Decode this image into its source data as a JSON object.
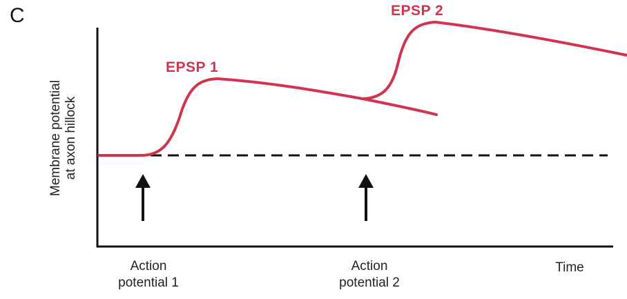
{
  "panel": {
    "letter": "C",
    "y_axis_label_line1": "Membrane potential",
    "y_axis_label_line2": "at axon hillock",
    "x_axis_label": "Time"
  },
  "curves": [
    {
      "label": "EPSP 1"
    },
    {
      "label": "EPSP 2"
    }
  ],
  "events": [
    {
      "line1": "Action",
      "line2": "potential 1"
    },
    {
      "line1": "Action",
      "line2": "potential 2"
    }
  ],
  "colors": {
    "epsp": "#d2344e",
    "axis": "#111111",
    "baseline": "#111111"
  }
}
